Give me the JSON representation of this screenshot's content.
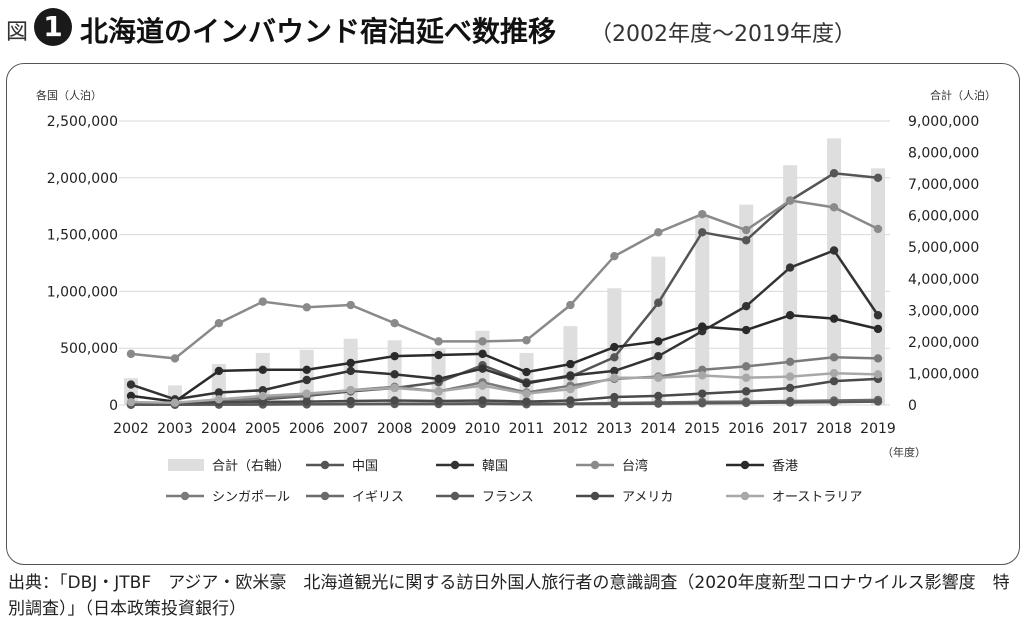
{
  "header": {
    "figure_label": "図",
    "figure_number": "1",
    "title": "北海道のインバウンド宿泊延べ数推移",
    "subtitle": "（2002年度～2019年度）"
  },
  "source": "出典：「DBJ・JTBF　アジア・欧米豪　北海道観光に関する訪日外国人旅行者の意識調査（2020年度新型コロナウイルス影響度　特別調査）」（日本政策投資銀行）",
  "chart_data": {
    "type": "line",
    "ylabel_left": "各国（人泊）",
    "ylabel_right": "合計（人泊）",
    "xlabel": "（年度）",
    "categories": [
      "2002",
      "2003",
      "2004",
      "2005",
      "2006",
      "2007",
      "2008",
      "2009",
      "2010",
      "2011",
      "2012",
      "2013",
      "2014",
      "2015",
      "2016",
      "2017",
      "2018",
      "2019"
    ],
    "ylim_left": [
      0,
      2500000
    ],
    "ylim_right": [
      0,
      9000000
    ],
    "yticks_left": [
      "2,500,000",
      "2,000,000",
      "1,500,000",
      "1,000,000",
      "500,000",
      "0"
    ],
    "yticks_right": [
      "9,000,000",
      "8,000,000",
      "7,000,000",
      "6,000,000",
      "5,000,000",
      "4,000,000",
      "3,000,000",
      "2,000,000",
      "1,000,000",
      "0"
    ],
    "grid": true,
    "legend_position": "bottom",
    "bar_series": {
      "name": "合計（右軸）",
      "color": "#dedede",
      "values": [
        850000,
        620000,
        1300000,
        1650000,
        1750000,
        2100000,
        2050000,
        1800000,
        2350000,
        1650000,
        2500000,
        3700000,
        4700000,
        6000000,
        6350000,
        7600000,
        8450000,
        7500000
      ]
    },
    "series": [
      {
        "name": "中国",
        "color": "#555555",
        "values": [
          5000,
          8000,
          25000,
          50000,
          80000,
          120000,
          150000,
          200000,
          350000,
          200000,
          250000,
          420000,
          900000,
          1520000,
          1450000,
          1800000,
          2040000,
          2000000
        ]
      },
      {
        "name": "韓国",
        "color": "#333333",
        "values": [
          180000,
          50000,
          110000,
          130000,
          220000,
          300000,
          270000,
          230000,
          320000,
          190000,
          260000,
          300000,
          430000,
          650000,
          870000,
          1210000,
          1360000,
          790000
        ]
      },
      {
        "name": "台湾",
        "color": "#8a8a8a",
        "values": [
          450000,
          410000,
          720000,
          910000,
          860000,
          880000,
          720000,
          560000,
          560000,
          570000,
          880000,
          1310000,
          1520000,
          1680000,
          1540000,
          1800000,
          1740000,
          1550000
        ]
      },
      {
        "name": "香港",
        "color": "#2a2a2a",
        "values": [
          80000,
          30000,
          300000,
          310000,
          310000,
          370000,
          430000,
          440000,
          450000,
          290000,
          360000,
          510000,
          560000,
          690000,
          660000,
          790000,
          760000,
          670000
        ]
      },
      {
        "name": "シンガポール",
        "color": "#7a7a7a",
        "values": [
          5000,
          8000,
          30000,
          60000,
          90000,
          130000,
          160000,
          120000,
          200000,
          110000,
          170000,
          230000,
          250000,
          310000,
          340000,
          380000,
          420000,
          410000
        ]
      },
      {
        "name": "イギリス",
        "color": "#6a6a6a",
        "values": [
          3000,
          3000,
          5000,
          6000,
          8000,
          10000,
          12000,
          12000,
          15000,
          10000,
          12000,
          18000,
          22000,
          28000,
          30000,
          35000,
          40000,
          45000
        ]
      },
      {
        "name": "フランス",
        "color": "#5a5a5a",
        "values": [
          2000,
          2000,
          3000,
          4000,
          5000,
          7000,
          8000,
          8000,
          10000,
          6000,
          8000,
          10000,
          12000,
          15000,
          18000,
          22000,
          25000,
          30000
        ]
      },
      {
        "name": "アメリカ",
        "color": "#4a4a4a",
        "values": [
          20000,
          18000,
          25000,
          28000,
          30000,
          35000,
          40000,
          35000,
          40000,
          30000,
          40000,
          70000,
          80000,
          100000,
          120000,
          150000,
          210000,
          230000
        ]
      },
      {
        "name": "オーストラリア",
        "color": "#a8a8a8",
        "values": [
          25000,
          20000,
          50000,
          80000,
          100000,
          130000,
          150000,
          120000,
          170000,
          100000,
          140000,
          240000,
          240000,
          260000,
          240000,
          250000,
          280000,
          270000
        ]
      }
    ]
  }
}
